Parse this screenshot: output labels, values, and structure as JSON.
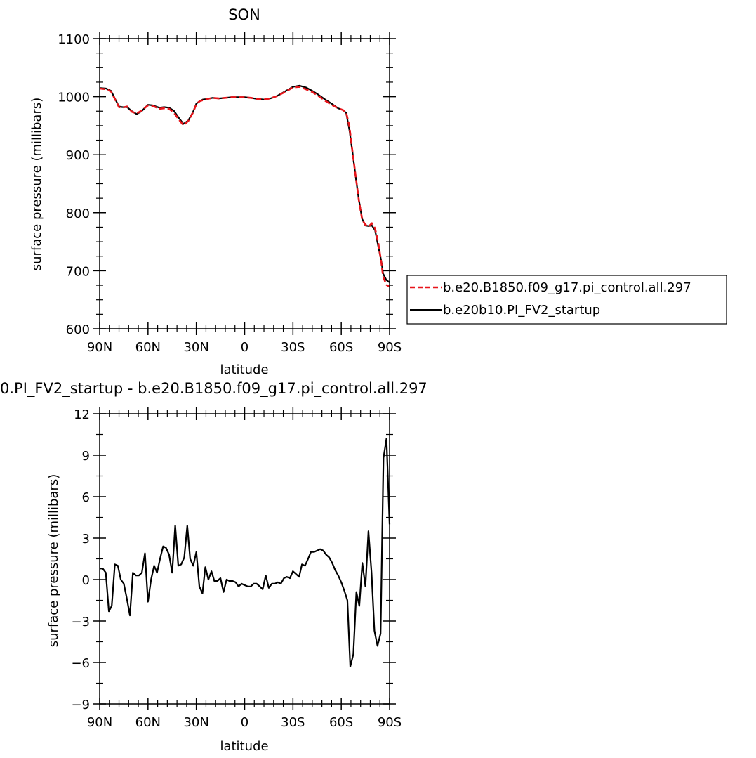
{
  "chart_data": [
    {
      "type": "line",
      "title": "SON",
      "xlabel": "latitude",
      "ylabel": "surface pressure (millibars)",
      "ylim": [
        600,
        1100
      ],
      "xlim": [
        90,
        -90
      ],
      "x_ticks": [
        90,
        60,
        30,
        0,
        -30,
        -60,
        -90
      ],
      "x_tick_labels": [
        "90N",
        "60N",
        "30N",
        "0",
        "30S",
        "60S",
        "90S"
      ],
      "y_ticks": [
        600,
        700,
        800,
        900,
        1000,
        1100
      ],
      "y_tick_labels": [
        "600",
        "700",
        "800",
        "900",
        "1000",
        "1100"
      ],
      "legend_position": "right",
      "x": [
        90,
        86,
        83,
        80,
        78,
        76,
        73,
        70,
        67,
        64,
        60,
        57,
        53,
        50,
        47,
        44,
        41,
        38,
        35,
        32,
        30,
        28,
        26,
        23,
        20,
        16,
        12,
        8,
        4,
        0,
        -4,
        -8,
        -12,
        -16,
        -20,
        -25,
        -30,
        -34,
        -38,
        -42,
        -46,
        -50,
        -54,
        -58,
        -61,
        -63,
        -65,
        -67,
        -69,
        -71,
        -73,
        -75,
        -77,
        -79,
        -81,
        -83,
        -85,
        -86,
        -88,
        -89,
        -90
      ],
      "series": [
        {
          "name": "b.e20.B1850.f09_g17.pi_control.all.297",
          "color": "#e8151b",
          "dash": "dashed",
          "values": [
            1014,
            1013,
            1009,
            993,
            982,
            981,
            983,
            974,
            971,
            976,
            985,
            984,
            979,
            980,
            979,
            973,
            961,
            951,
            958,
            973,
            987,
            992,
            994,
            996,
            998,
            997,
            998,
            999,
            999,
            999,
            998,
            996,
            995,
            997,
            1001,
            1008,
            1016,
            1017,
            1013,
            1008,
            1001,
            993,
            986,
            980,
            977,
            973,
            950,
            905,
            862,
            820,
            788,
            779,
            776,
            782,
            773,
            748,
            712,
            690,
            676,
            674,
            673
          ]
        },
        {
          "name": "b.e20b10.PI_FV2_startup",
          "color": "#000000",
          "dash": "solid",
          "values": [
            1015,
            1014,
            1010,
            994,
            983,
            982,
            982,
            975,
            970,
            975,
            986,
            985,
            981,
            982,
            981,
            976,
            964,
            953,
            959,
            974,
            988,
            992,
            995,
            996,
            998,
            997,
            998,
            999,
            999,
            999,
            998,
            996,
            995,
            997,
            1001,
            1009,
            1017,
            1019,
            1016,
            1010,
            1003,
            995,
            988,
            980,
            977,
            972,
            944,
            904,
            861,
            821,
            789,
            778,
            777,
            778,
            770,
            742,
            715,
            695,
            684,
            682,
            680
          ]
        }
      ]
    },
    {
      "type": "line",
      "title": "0.PI_FV2_startup - b.e20.B1850.f09_g17.pi_control.all.297",
      "xlabel": "latitude",
      "ylabel": "surface pressure (millibars)",
      "ylim": [
        -9,
        12
      ],
      "xlim": [
        90,
        -90
      ],
      "x_ticks": [
        90,
        60,
        30,
        0,
        -30,
        -60,
        -90
      ],
      "x_tick_labels": [
        "90N",
        "60N",
        "30N",
        "0",
        "30S",
        "60S",
        "90S"
      ],
      "y_ticks": [
        -9,
        -6,
        -3,
        0,
        3,
        6,
        9,
        12
      ],
      "y_tick_labels": [
        "−9",
        "−6",
        "−3",
        "0",
        "3",
        "6",
        "9",
        "12"
      ],
      "x": [
        90,
        88.1,
        86.2,
        84.3,
        82.5,
        80.6,
        78.7,
        76.9,
        75,
        73.1,
        71.2,
        69.4,
        67.5,
        65.6,
        63.8,
        61.9,
        60,
        58.1,
        56.2,
        54.4,
        52.5,
        50.6,
        48.8,
        46.9,
        45,
        43.1,
        41.2,
        39.4,
        37.5,
        35.6,
        33.8,
        31.9,
        30,
        28.1,
        26.2,
        24.4,
        22.5,
        20.6,
        18.8,
        16.9,
        15,
        13.1,
        11.2,
        9.4,
        7.5,
        5.6,
        3.8,
        1.9,
        0,
        -1.9,
        -3.8,
        -5.6,
        -7.5,
        -9.4,
        -11.2,
        -13.1,
        -15,
        -16.9,
        -18.8,
        -20.6,
        -22.5,
        -24.4,
        -26.2,
        -28.1,
        -30,
        -31.9,
        -33.8,
        -35.6,
        -37.5,
        -39.4,
        -41.2,
        -43.1,
        -45,
        -46.9,
        -48.8,
        -50.6,
        -52.5,
        -54.4,
        -56.2,
        -58.1,
        -60,
        -61.9,
        -63.8,
        -65.6,
        -67.5,
        -69.4,
        -71.2,
        -73.1,
        -75,
        -76.9,
        -78.8,
        -80.6,
        -82.5,
        -84.4,
        -86.2,
        -88.1,
        -90
      ],
      "series": [
        {
          "color": "#000000",
          "values": [
            0.8,
            0.8,
            0.5,
            -2.3,
            -1.9,
            1.1,
            1.0,
            0.0,
            -0.3,
            -1.4,
            -2.6,
            0.5,
            0.3,
            0.3,
            0.5,
            1.9,
            -1.6,
            0.0,
            1.0,
            0.5,
            1.5,
            2.4,
            2.3,
            1.8,
            0.5,
            3.9,
            1.0,
            1.1,
            1.6,
            3.9,
            1.5,
            1.0,
            2.0,
            -0.5,
            -1.0,
            0.9,
            0.0,
            0.6,
            -0.1,
            -0.1,
            0.1,
            -0.9,
            0.0,
            -0.1,
            -0.1,
            -0.2,
            -0.5,
            -0.3,
            -0.4,
            -0.5,
            -0.5,
            -0.3,
            -0.3,
            -0.5,
            -0.7,
            0.3,
            -0.6,
            -0.3,
            -0.3,
            -0.2,
            -0.3,
            0.1,
            0.2,
            0.1,
            0.6,
            0.4,
            0.2,
            1.1,
            1.0,
            1.5,
            2.0,
            2.0,
            2.1,
            2.2,
            2.1,
            1.8,
            1.6,
            1.2,
            0.7,
            0.3,
            -0.2,
            -0.8,
            -1.5,
            -6.3,
            -5.4,
            -0.9,
            -1.9,
            1.2,
            -0.5,
            3.5,
            0.5,
            -3.7,
            -4.8,
            -3.9,
            8.8,
            10.2,
            4.0
          ]
        }
      ]
    }
  ]
}
